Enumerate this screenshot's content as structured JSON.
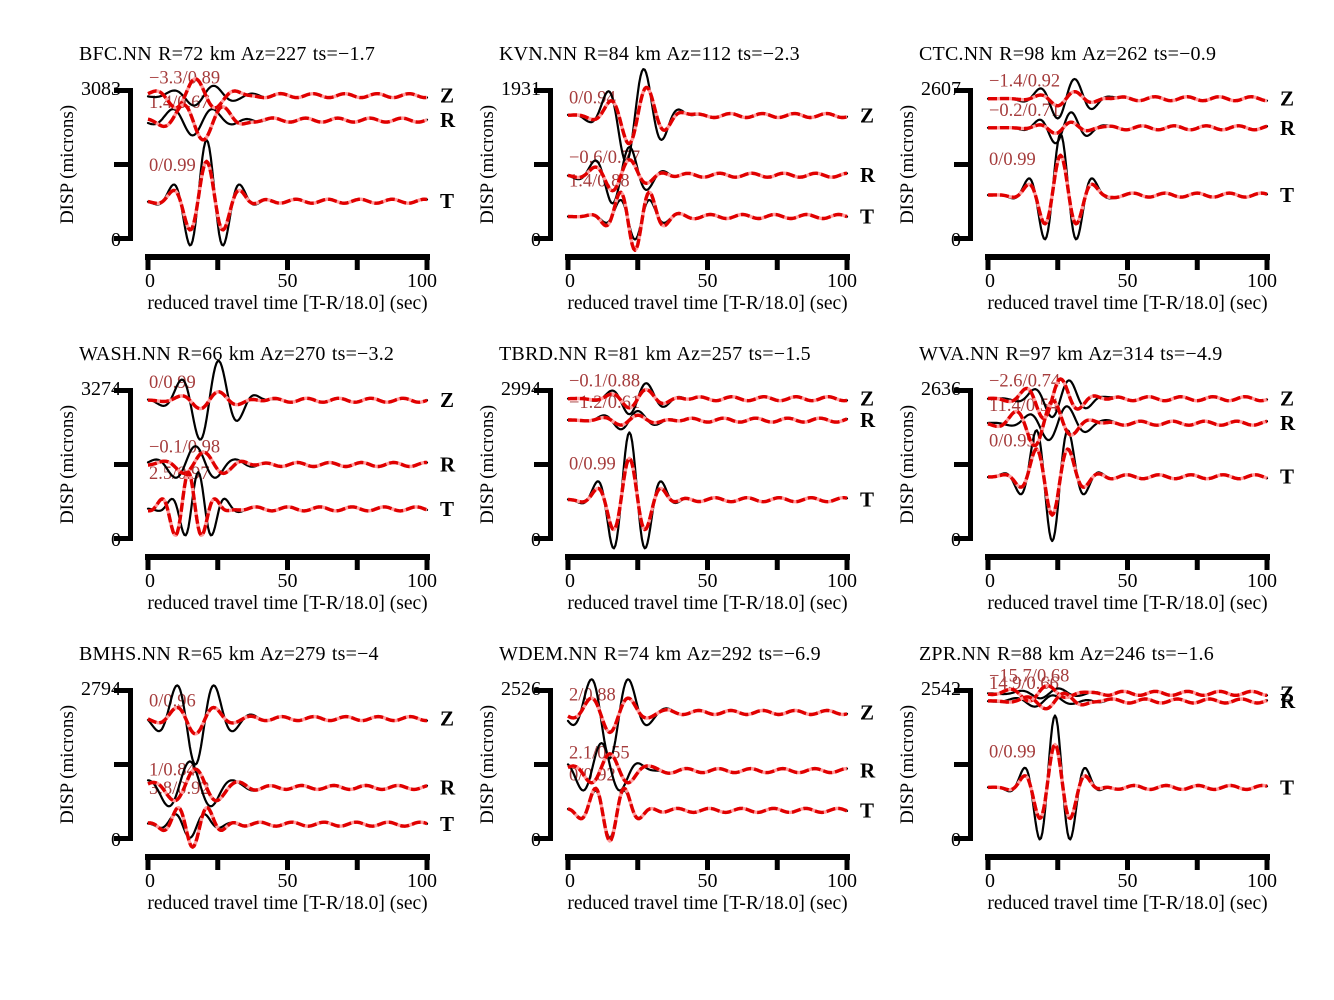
{
  "figure": {
    "xlabel": "reduced travel time [T-R/18.0] (sec)",
    "ylabel": "DISP (microns)",
    "x_range": [
      0,
      100
    ],
    "x_ticks": [
      0,
      25,
      50,
      75,
      100
    ],
    "x_tick_labels": [
      "0",
      "50",
      "100"
    ],
    "y_bottom_label": "0",
    "colors": {
      "observed_trace": "#000000",
      "synthetic_trace": "#e00000",
      "synthetic_trace_light": "#ff9d9d",
      "annotation_text": "#a53c3c",
      "axis": "#000000"
    }
  },
  "chart_data": {
    "type": "line",
    "description": "3x3 grid of three-component (Z,R,T) displacement waveform fits; black = observed, red dashed = synthetic; annotation = time shift / cross-correlation",
    "x_range": [
      0,
      100
    ],
    "panels": [
      {
        "station": "BFC.NN",
        "title": "BFC.NN R=72 km Az=227 ts=−1.7",
        "distance_km": 72,
        "azimuth": 227,
        "ts": -1.7,
        "ymax": 3083,
        "ymax_label": "3083",
        "components": [
          {
            "label": "Z",
            "annotation": "−3.3/0.89",
            "base": 0.95,
            "observed": {
              "amp": 0.07,
              "t0": 20,
              "period": 15,
              "phase": -90
            },
            "synthetic": {
              "amp": 0.11,
              "shift": -3,
              "phase": 0
            },
            "coda_phase": 0.7
          },
          {
            "label": "R",
            "annotation": "1.4/0.67",
            "base": 0.79,
            "observed": {
              "amp": 0.1,
              "t0": 16,
              "period": 15,
              "phase": 180
            },
            "synthetic": {
              "amp": 0.13,
              "shift": 3,
              "phase": 160
            },
            "coda_phase": 2.1
          },
          {
            "label": "T",
            "annotation": "0/0.99",
            "base": 0.26,
            "observed": {
              "amp": 0.4,
              "t0": 21,
              "period": 12.5,
              "phase": 0
            },
            "synthetic": {
              "amp": 0.26,
              "shift": 0
            },
            "coda_phase": 4.0
          }
        ]
      },
      {
        "station": "KVN.NN",
        "title": "KVN.NN R=84 km Az=112 ts=−2.3",
        "distance_km": 84,
        "azimuth": 112,
        "ts": -2.3,
        "ymax": 1931,
        "ymax_label": "1931",
        "components": [
          {
            "label": "Z",
            "annotation": "0/0.94",
            "base": 0.82,
            "observed": {
              "amp": 0.33,
              "t0": 24,
              "period": 13.5,
              "phase": -90
            },
            "synthetic": {
              "amp": 0.2,
              "shift": 1
            },
            "coda_phase": 1.2
          },
          {
            "label": "R",
            "annotation": "−0.6/0.77",
            "base": 0.43,
            "observed": {
              "amp": 0.2,
              "t0": 19,
              "period": 13,
              "phase": -90
            },
            "synthetic": {
              "amp": 0.11,
              "shift": 0
            },
            "coda_phase": 3.3
          },
          {
            "label": "T",
            "annotation": "1.4/0.88",
            "base": 0.16,
            "observed": {
              "amp": 0.15,
              "t0": 24,
              "period": 11,
              "phase": 180
            },
            "synthetic": {
              "amp": 0.22,
              "shift": 0
            },
            "coda_phase": 5.1
          }
        ]
      },
      {
        "station": "CTC.NN",
        "title": "CTC.NN R=98 km Az=262 ts=−0.9",
        "distance_km": 98,
        "azimuth": 262,
        "ts": -0.9,
        "ymax": 2607,
        "ymax_label": "2607",
        "components": [
          {
            "label": "Z",
            "annotation": "−1.4/0.92",
            "base": 0.93,
            "observed": {
              "amp": 0.14,
              "t0": 28,
              "period": 13,
              "phase": -90
            },
            "synthetic": {
              "amp": 0.05,
              "shift": 0
            },
            "coda_phase": 0.3
          },
          {
            "label": "R",
            "annotation": "−0.2/0.71",
            "base": 0.74,
            "observed": {
              "amp": 0.11,
              "t0": 27,
              "period": 12,
              "phase": -90
            },
            "synthetic": {
              "amp": 0.04,
              "shift": 0
            },
            "coda_phase": 2.8
          },
          {
            "label": "T",
            "annotation": "0/0.99",
            "base": 0.3,
            "observed": {
              "amp": 0.4,
              "t0": 26,
              "period": 12,
              "phase": 0
            },
            "synthetic": {
              "amp": 0.26,
              "shift": 0
            },
            "coda_phase": 4.6
          }
        ]
      },
      {
        "station": "WASH.NN",
        "title": "WASH.NN R=66 km Az=270 ts=−3.2",
        "distance_km": 66,
        "azimuth": 270,
        "ts": -3.2,
        "ymax": 3274,
        "ymax_label": "3274",
        "components": [
          {
            "label": "Z",
            "annotation": "0/0.99",
            "base": 0.92,
            "observed": {
              "amp": 0.28,
              "t0": 22,
              "period": 14,
              "phase": -90
            },
            "synthetic": {
              "amp": 0.06,
              "shift": 0
            },
            "coda_phase": 1.9
          },
          {
            "label": "R",
            "annotation": "−0.1/0.98",
            "base": 0.5,
            "observed": {
              "amp": 0.12,
              "t0": 17,
              "period": 15,
              "phase": 0
            },
            "synthetic": {
              "amp": 0.08,
              "shift": 3
            },
            "coda_phase": 3.7
          },
          {
            "label": "T",
            "annotation": "2.5/0.97",
            "base": 0.21,
            "observed": {
              "amp": 0.24,
              "t0": 18,
              "period": 10,
              "phase": 0
            },
            "synthetic": {
              "amp": 0.24,
              "shift": -3.5
            },
            "coda_phase": 5.6
          }
        ]
      },
      {
        "station": "TBRD.NN",
        "title": "TBRD.NN R=81 km Az=257 ts=−1.5",
        "distance_km": 81,
        "azimuth": 257,
        "ts": -1.5,
        "ymax": 2994,
        "ymax_label": "2994",
        "components": [
          {
            "label": "Z",
            "annotation": "−0.1/0.88",
            "base": 0.93,
            "observed": {
              "amp": 0.11,
              "t0": 25,
              "period": 13,
              "phase": -90
            },
            "synthetic": {
              "amp": 0.065,
              "shift": 0
            },
            "coda_phase": 0.9
          },
          {
            "label": "R",
            "annotation": "−1.2/0.61",
            "base": 0.79,
            "observed": {
              "amp": 0.065,
              "t0": 22,
              "period": 13,
              "phase": -90
            },
            "synthetic": {
              "amp": 0.035,
              "shift": 0
            },
            "coda_phase": 2.5
          },
          {
            "label": "T",
            "annotation": "0/0.99",
            "base": 0.27,
            "observed": {
              "amp": 0.44,
              "t0": 22,
              "period": 12,
              "phase": 0
            },
            "synthetic": {
              "amp": 0.27,
              "shift": 0
            },
            "coda_phase": 4.2
          }
        ]
      },
      {
        "station": "WVA.NN",
        "title": "WVA.NN R=97 km Az=314 ts=−4.9",
        "distance_km": 97,
        "azimuth": 314,
        "ts": -4.9,
        "ymax": 2636,
        "ymax_label": "2636",
        "components": [
          {
            "label": "Z",
            "annotation": "−2.6/0.74",
            "base": 0.93,
            "observed": {
              "amp": 0.13,
              "t0": 26,
              "period": 13,
              "phase": -90
            },
            "synthetic": {
              "amp": 0.14,
              "shift": -3
            },
            "coda_phase": 1.5
          },
          {
            "label": "R",
            "annotation": "11.4/0.54",
            "base": 0.77,
            "observed": {
              "amp": 0.12,
              "t0": 25,
              "period": 14,
              "phase": -90
            },
            "synthetic": {
              "amp": 0.16,
              "shift": -5
            },
            "coda_phase": 3.1
          },
          {
            "label": "T",
            "annotation": "0/0.99",
            "base": 0.42,
            "observed": {
              "amp": 0.42,
              "t0": 23,
              "period": 12,
              "phase": 180
            },
            "synthetic": {
              "amp": 0.25,
              "shift": 0
            },
            "coda_phase": 5.8
          }
        ]
      },
      {
        "station": "BMHS.NN",
        "title": "BMHS.NN R=65 km Az=279 ts=−4",
        "distance_km": 65,
        "azimuth": 279,
        "ts": -4,
        "ymax": 2794,
        "ymax_label": "2794",
        "components": [
          {
            "label": "Z",
            "annotation": "0/0.96",
            "base": 0.8,
            "observed": {
              "amp": 0.3,
              "t0": 17,
              "period": 14,
              "phase": 180
            },
            "synthetic": {
              "amp": 0.1,
              "shift": 0
            },
            "coda_phase": 0.5
          },
          {
            "label": "R",
            "annotation": "1/0.84",
            "base": 0.35,
            "observed": {
              "amp": 0.17,
              "t0": 15,
              "period": 16,
              "phase": 0
            },
            "synthetic": {
              "amp": 0.12,
              "shift": 2
            },
            "coda_phase": 2.9
          },
          {
            "label": "T",
            "annotation": "3.8/0.92",
            "base": 0.11,
            "observed": {
              "amp": 0.09,
              "t0": 15,
              "period": 11,
              "phase": 180
            },
            "synthetic": {
              "amp": 0.15,
              "shift": 1,
              "phase": 180
            },
            "coda_phase": 4.8
          }
        ]
      },
      {
        "station": "WDEM.NN",
        "title": "WDEM.NN R=74 km Az=292 ts=−6.9",
        "distance_km": 74,
        "azimuth": 292,
        "ts": -6.9,
        "ymax": 2526,
        "ymax_label": "2526",
        "components": [
          {
            "label": "Z",
            "annotation": "2/0.88",
            "base": 0.84,
            "observed": {
              "amp": 0.3,
              "t0": 15,
              "period": 14,
              "phase": 180
            },
            "synthetic": {
              "amp": 0.13,
              "shift": 0
            },
            "coda_phase": 1.1
          },
          {
            "label": "R",
            "annotation": "2.1/0.55",
            "base": 0.46,
            "observed": {
              "amp": 0.18,
              "t0": 12,
              "period": 14,
              "phase": 0
            },
            "synthetic": {
              "amp": 0.11,
              "shift": 3
            },
            "coda_phase": 3.5
          },
          {
            "label": "T",
            "annotation": "0/0.92",
            "base": 0.2,
            "observed": {
              "amp": 0.18,
              "t0": 15,
              "period": 11,
              "phase": 180
            },
            "synthetic": {
              "amp": 0.2,
              "shift": 0
            },
            "coda_phase": 5.3
          }
        ]
      },
      {
        "station": "ZPR.NN",
        "title": "ZPR.NN R=88 km Az=246 ts=−1.6",
        "distance_km": 88,
        "azimuth": 246,
        "ts": -1.6,
        "ymax": 2542,
        "ymax_label": "2542",
        "components": [
          {
            "label": "Z",
            "annotation": "−15.7/0.68",
            "base": 0.965,
            "observed": {
              "amp": 0.035,
              "t0": 22,
              "period": 14,
              "phase": -90
            },
            "synthetic": {
              "amp": 0.055,
              "shift": -4
            },
            "coda_phase": 0.2
          },
          {
            "label": "R",
            "annotation": "14.9/0.66",
            "base": 0.915,
            "observed": {
              "amp": 0.04,
              "t0": 20,
              "period": 14,
              "phase": -90
            },
            "synthetic": {
              "amp": 0.055,
              "shift": 4
            },
            "coda_phase": 2.2
          },
          {
            "label": "T",
            "annotation": "0/0.99",
            "base": 0.35,
            "observed": {
              "amp": 0.47,
              "t0": 24,
              "period": 11.5,
              "phase": 0
            },
            "synthetic": {
              "amp": 0.28,
              "shift": 0
            },
            "coda_phase": 4.4
          }
        ]
      }
    ]
  }
}
